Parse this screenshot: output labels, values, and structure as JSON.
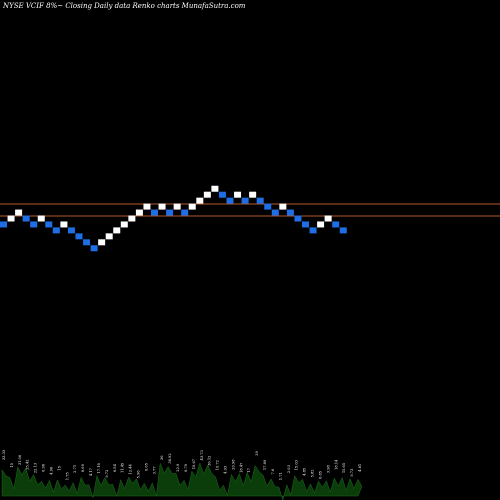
{
  "header": {
    "title": "NYSE VCIF 8%~ Closing Daily data Renko charts MunafaSutra.com"
  },
  "colors": {
    "background": "#000000",
    "up_brick": "#ffffff",
    "down_brick": "#1e6ee6",
    "reference_line": "#b45a28",
    "volume_fill": "#0a3d0a",
    "volume_edge": "#1f6b1f"
  },
  "chart_data": {
    "type": "renko",
    "brick_directions": [
      "down",
      "up",
      "up",
      "down",
      "down",
      "up",
      "down",
      "down",
      "up",
      "down",
      "down",
      "down",
      "down",
      "up",
      "up",
      "up",
      "up",
      "up",
      "up",
      "up",
      "down",
      "up",
      "down",
      "up",
      "down",
      "up",
      "up",
      "up",
      "up",
      "down",
      "down",
      "up",
      "down",
      "up",
      "down",
      "down",
      "down",
      "up",
      "down",
      "down",
      "down",
      "down",
      "up",
      "up",
      "down",
      "down"
    ],
    "reference_levels": [
      "upper",
      "lower"
    ],
    "volume_labels": [
      "33.33",
      "15",
      "31.06",
      "25.42",
      "22.13",
      "6.96",
      "4.96",
      "15",
      "1.75",
      "2.71",
      "8.69",
      "4.17",
      "17.18",
      "9.72",
      "6.54",
      "11.45",
      "12.44",
      "5.96",
      "6.65",
      "3.77",
      "36",
      "38.92",
      "22.9",
      "6.79",
      "19.67",
      "43.73",
      "36.12",
      "10.72",
      "4.93",
      "20.98",
      "18.47",
      "17",
      "39",
      "17.89",
      "7.6",
      "1.71",
      "2.03",
      "15.03",
      "4.85",
      "5.82",
      "6.85",
      "3.98",
      "18.14",
      "15.65",
      "9.73",
      "4.81"
    ]
  }
}
